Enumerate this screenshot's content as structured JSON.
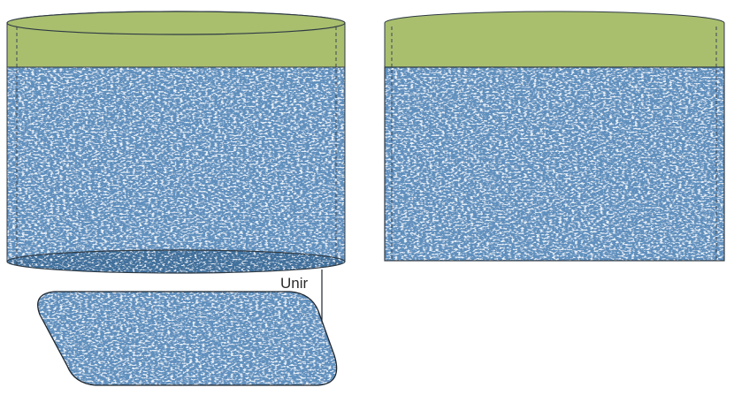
{
  "diagram": {
    "join_label": "Unir",
    "colors": {
      "band": "#a9bf6e",
      "denim": "#6a98c4",
      "denim_light": "#d6e6f3",
      "denim_dark": "#3f6f9c",
      "outline": "#2f3a44",
      "seam": "#3b4654"
    },
    "parts": [
      {
        "name": "cylinder-assembled",
        "shape": "open cylinder with waistband"
      },
      {
        "name": "flat-body-panel",
        "shape": "flat rectangle with waistband"
      },
      {
        "name": "base-piece",
        "shape": "slanted rounded parallelogram"
      }
    ]
  }
}
